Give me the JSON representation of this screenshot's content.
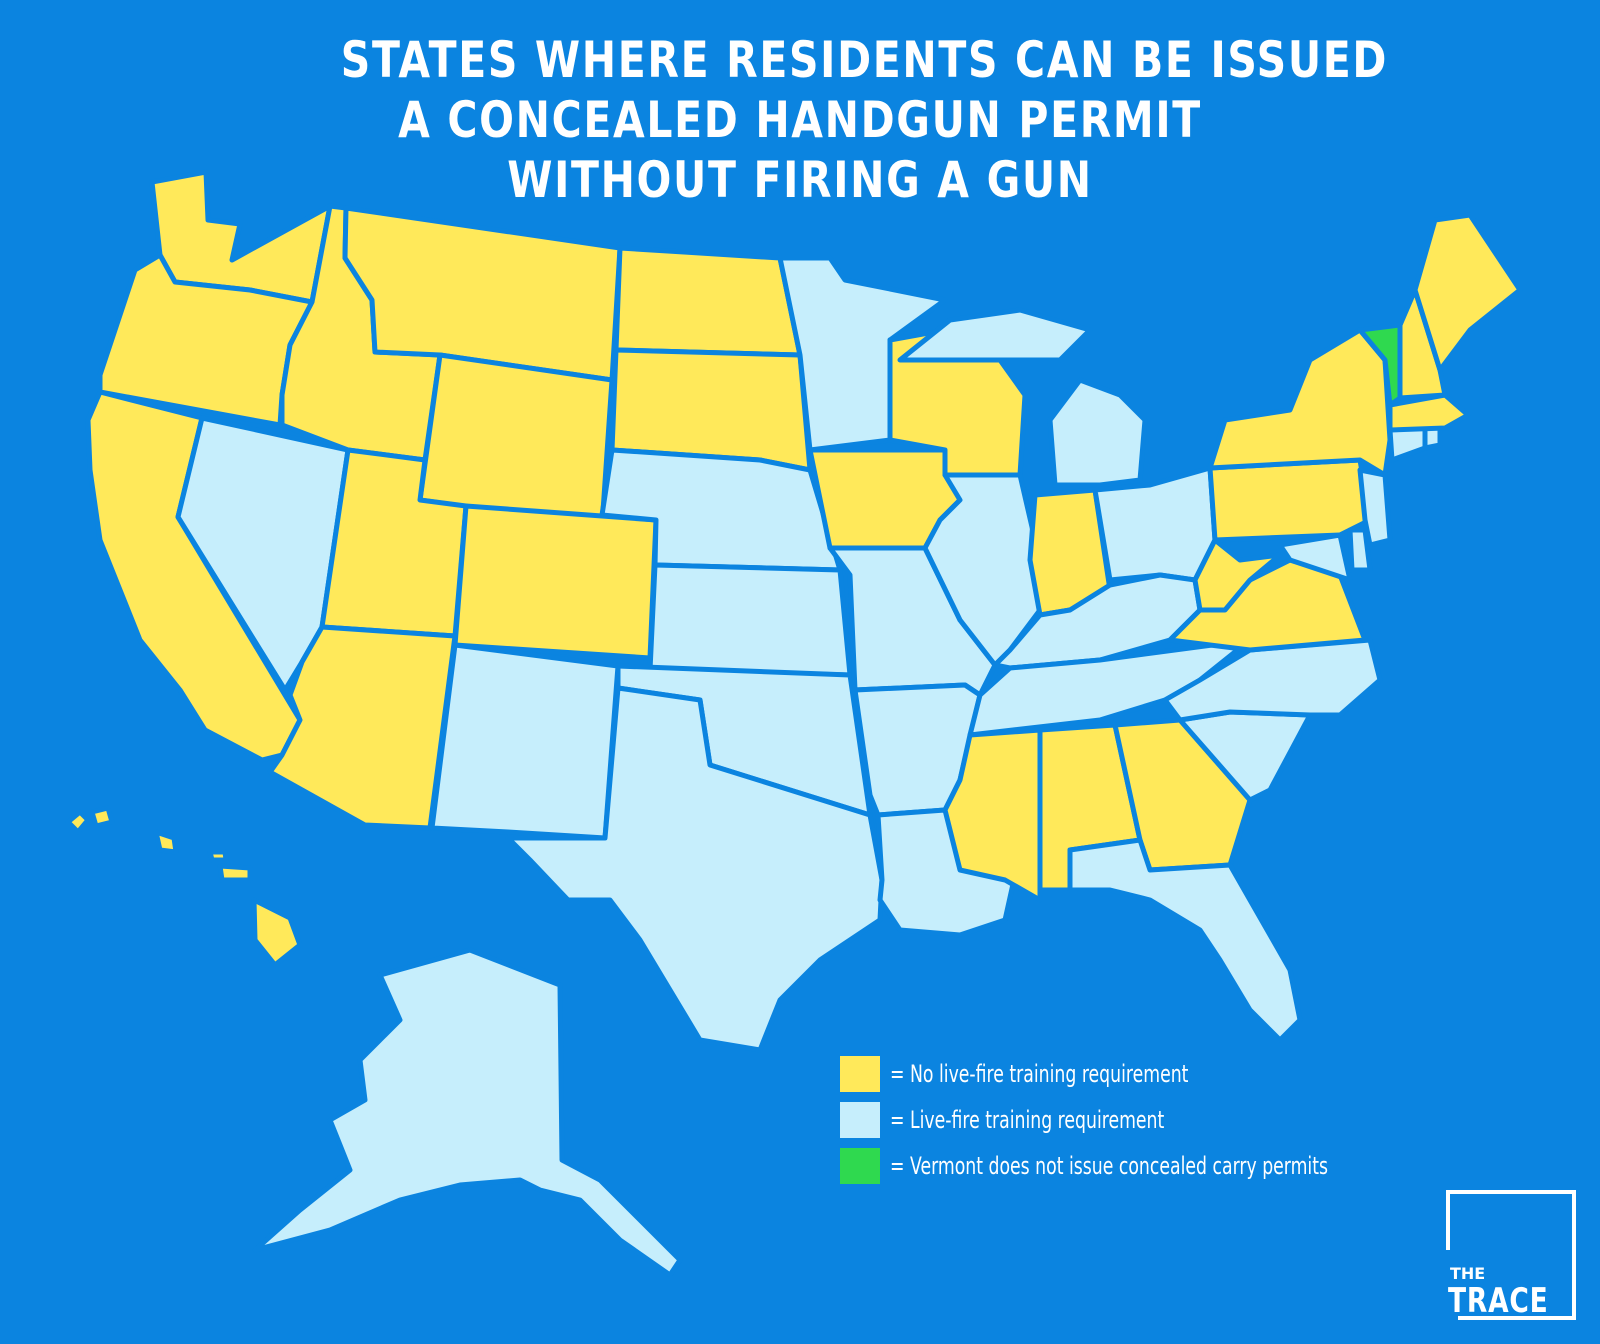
{
  "title": {
    "line1": "STATES WHERE RESIDENTS CAN BE ISSUED",
    "line2": "A CONCEALED HANDGUN PERMIT",
    "line3": "WITHOUT FIRING A GUN"
  },
  "colors": {
    "background": "#0b84e0",
    "no_live_fire": "#ffe95a",
    "live_fire": "#c6eefc",
    "no_permits": "#2fd94f"
  },
  "legend": [
    {
      "key": "no_live_fire",
      "label": "= No live-fire training requirement"
    },
    {
      "key": "live_fire",
      "label": "= Live-fire training requirement"
    },
    {
      "key": "no_permits",
      "label": "= Vermont does not issue concealed carry permits"
    }
  ],
  "states": {
    "Washington": "no_live_fire",
    "Oregon": "no_live_fire",
    "California": "no_live_fire",
    "Nevada": "live_fire",
    "Idaho": "no_live_fire",
    "Montana": "no_live_fire",
    "Wyoming": "no_live_fire",
    "Utah": "no_live_fire",
    "Arizona": "no_live_fire",
    "Colorado": "no_live_fire",
    "New Mexico": "live_fire",
    "North Dakota": "no_live_fire",
    "South Dakota": "no_live_fire",
    "Nebraska": "live_fire",
    "Kansas": "live_fire",
    "Oklahoma": "live_fire",
    "Texas": "live_fire",
    "Minnesota": "live_fire",
    "Iowa": "no_live_fire",
    "Missouri": "live_fire",
    "Arkansas": "live_fire",
    "Louisiana": "live_fire",
    "Wisconsin": "no_live_fire",
    "Illinois": "live_fire",
    "Michigan": "live_fire",
    "Indiana": "no_live_fire",
    "Ohio": "live_fire",
    "Kentucky": "live_fire",
    "Tennessee": "live_fire",
    "Mississippi": "no_live_fire",
    "Alabama": "no_live_fire",
    "Georgia": "no_live_fire",
    "Florida": "live_fire",
    "South Carolina": "live_fire",
    "North Carolina": "live_fire",
    "Virginia": "no_live_fire",
    "West Virginia": "no_live_fire",
    "Pennsylvania": "no_live_fire",
    "New York": "no_live_fire",
    "Maryland": "live_fire",
    "Delaware": "live_fire",
    "New Jersey": "live_fire",
    "Connecticut": "live_fire",
    "Rhode Island": "live_fire",
    "Massachusetts": "no_live_fire",
    "Vermont": "no_permits",
    "New Hampshire": "no_live_fire",
    "Maine": "no_live_fire",
    "Alaska": "live_fire",
    "Hawaii": "no_live_fire"
  },
  "logo": {
    "line1": "THE",
    "line2": "TRACE"
  }
}
